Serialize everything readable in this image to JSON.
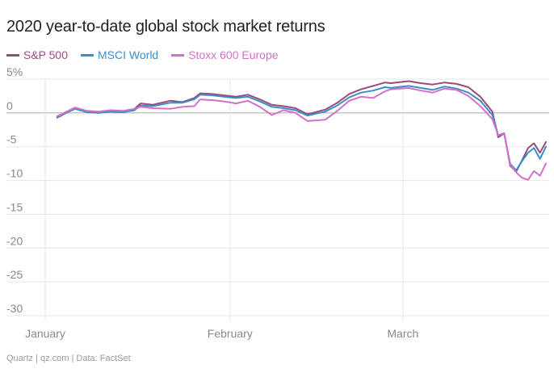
{
  "title": "2020 year-to-date global stock market returns",
  "source": "Quartz | qz.com | Data: FactSet",
  "colors": {
    "sp500": "#9b4a7c",
    "msci": "#3a8fc7",
    "stoxx": "#d56fc9",
    "grid": "#e6e6e6",
    "zero": "#aaaaaa"
  },
  "chart_data": {
    "type": "line",
    "ylim": [
      -30,
      5
    ],
    "yticks": [
      5,
      0,
      -5,
      -10,
      -15,
      -20,
      -25,
      -30
    ],
    "ytick_labels": [
      "5%",
      "0",
      "-5",
      "-10",
      "-15",
      "-20",
      "-25",
      "-30"
    ],
    "xlim": [
      "2020-01-01",
      "2020-03-25"
    ],
    "xticks": [
      {
        "date": "2020-01-01",
        "label": "January"
      },
      {
        "date": "2020-02-01",
        "label": "February"
      },
      {
        "date": "2020-03-01",
        "label": "March"
      }
    ],
    "grid": true,
    "legend": "top-left",
    "series": [
      {
        "name": "S&P 500",
        "color_key": "sp500",
        "points": [
          [
            "2020-01-03",
            -0.7
          ],
          [
            "2020-01-06",
            0.7
          ],
          [
            "2020-01-08",
            0.2
          ],
          [
            "2020-01-10",
            0.1
          ],
          [
            "2020-01-12",
            0.4
          ],
          [
            "2020-01-14",
            0.2
          ],
          [
            "2020-01-16",
            0.6
          ],
          [
            "2020-01-17",
            1.4
          ],
          [
            "2020-01-19",
            1.2
          ],
          [
            "2020-01-22",
            1.8
          ],
          [
            "2020-01-24",
            1.6
          ],
          [
            "2020-01-26",
            2.2
          ],
          [
            "2020-01-27",
            2.9
          ],
          [
            "2020-01-29",
            2.8
          ],
          [
            "2020-01-31",
            2.6
          ],
          [
            "2020-02-02",
            2.4
          ],
          [
            "2020-02-04",
            2.7
          ],
          [
            "2020-02-06",
            2.0
          ],
          [
            "2020-02-08",
            1.2
          ],
          [
            "2020-02-10",
            1.0
          ],
          [
            "2020-02-12",
            0.7
          ],
          [
            "2020-02-14",
            -0.2
          ],
          [
            "2020-02-17",
            0.5
          ],
          [
            "2020-02-19",
            1.5
          ],
          [
            "2020-02-21",
            2.8
          ],
          [
            "2020-02-23",
            3.5
          ],
          [
            "2020-02-25",
            4.0
          ],
          [
            "2020-02-27",
            4.5
          ],
          [
            "2020-02-28",
            4.4
          ],
          [
            "2020-03-02",
            4.7
          ],
          [
            "2020-03-04",
            4.4
          ],
          [
            "2020-03-06",
            4.2
          ],
          [
            "2020-03-08",
            4.5
          ],
          [
            "2020-03-10",
            4.3
          ],
          [
            "2020-03-12",
            3.8
          ],
          [
            "2020-03-14",
            2.4
          ],
          [
            "2020-03-16",
            0.2
          ],
          [
            "2020-03-17",
            -3.6
          ],
          [
            "2020-03-18",
            -3.0
          ],
          [
            "2020-03-19",
            -7.8
          ],
          [
            "2020-03-20",
            -8.7
          ],
          [
            "2020-03-21",
            -7.0
          ],
          [
            "2020-03-22",
            -5.2
          ],
          [
            "2020-03-23",
            -4.5
          ],
          [
            "2020-03-24",
            -5.9
          ],
          [
            "2020-03-25",
            -4.3
          ]
        ]
      },
      {
        "name": "MSCI World",
        "color_key": "msci",
        "points": [
          [
            "2020-01-03",
            -0.6
          ],
          [
            "2020-01-06",
            0.6
          ],
          [
            "2020-01-08",
            0.1
          ],
          [
            "2020-01-10",
            0.0
          ],
          [
            "2020-01-12",
            0.2
          ],
          [
            "2020-01-14",
            0.1
          ],
          [
            "2020-01-16",
            0.4
          ],
          [
            "2020-01-17",
            1.1
          ],
          [
            "2020-01-19",
            1.0
          ],
          [
            "2020-01-22",
            1.5
          ],
          [
            "2020-01-24",
            1.5
          ],
          [
            "2020-01-26",
            2.0
          ],
          [
            "2020-01-27",
            2.7
          ],
          [
            "2020-01-29",
            2.6
          ],
          [
            "2020-01-31",
            2.4
          ],
          [
            "2020-02-02",
            2.2
          ],
          [
            "2020-02-04",
            2.4
          ],
          [
            "2020-02-06",
            1.7
          ],
          [
            "2020-02-08",
            0.9
          ],
          [
            "2020-02-10",
            0.7
          ],
          [
            "2020-02-12",
            0.4
          ],
          [
            "2020-02-14",
            -0.4
          ],
          [
            "2020-02-17",
            0.2
          ],
          [
            "2020-02-19",
            1.1
          ],
          [
            "2020-02-21",
            2.3
          ],
          [
            "2020-02-23",
            3.0
          ],
          [
            "2020-02-25",
            3.3
          ],
          [
            "2020-02-27",
            3.8
          ],
          [
            "2020-02-28",
            3.7
          ],
          [
            "2020-03-02",
            4.0
          ],
          [
            "2020-03-04",
            3.7
          ],
          [
            "2020-03-06",
            3.4
          ],
          [
            "2020-03-08",
            3.9
          ],
          [
            "2020-03-10",
            3.6
          ],
          [
            "2020-03-12",
            3.0
          ],
          [
            "2020-03-14",
            1.8
          ],
          [
            "2020-03-16",
            -0.3
          ],
          [
            "2020-03-17",
            -3.3
          ],
          [
            "2020-03-18",
            -3.0
          ],
          [
            "2020-03-19",
            -7.5
          ],
          [
            "2020-03-20",
            -8.5
          ],
          [
            "2020-03-21",
            -7.1
          ],
          [
            "2020-03-22",
            -5.9
          ],
          [
            "2020-03-23",
            -5.2
          ],
          [
            "2020-03-24",
            -6.8
          ],
          [
            "2020-03-25",
            -5.0
          ]
        ]
      },
      {
        "name": "Stoxx 600 Europe",
        "color_key": "stoxx",
        "points": [
          [
            "2020-01-03",
            -0.5
          ],
          [
            "2020-01-06",
            0.8
          ],
          [
            "2020-01-08",
            0.3
          ],
          [
            "2020-01-10",
            0.2
          ],
          [
            "2020-01-12",
            0.4
          ],
          [
            "2020-01-14",
            0.3
          ],
          [
            "2020-01-16",
            0.6
          ],
          [
            "2020-01-17",
            0.9
          ],
          [
            "2020-01-19",
            0.7
          ],
          [
            "2020-01-22",
            0.6
          ],
          [
            "2020-01-24",
            0.9
          ],
          [
            "2020-01-26",
            1.0
          ],
          [
            "2020-01-27",
            2.0
          ],
          [
            "2020-01-29",
            1.9
          ],
          [
            "2020-01-31",
            1.7
          ],
          [
            "2020-02-02",
            1.4
          ],
          [
            "2020-02-04",
            1.8
          ],
          [
            "2020-02-06",
            0.9
          ],
          [
            "2020-02-08",
            -0.3
          ],
          [
            "2020-02-10",
            0.4
          ],
          [
            "2020-02-12",
            0.0
          ],
          [
            "2020-02-14",
            -1.2
          ],
          [
            "2020-02-17",
            -1.0
          ],
          [
            "2020-02-19",
            0.3
          ],
          [
            "2020-02-21",
            1.8
          ],
          [
            "2020-02-23",
            2.4
          ],
          [
            "2020-02-25",
            2.2
          ],
          [
            "2020-02-27",
            3.2
          ],
          [
            "2020-02-28",
            3.5
          ],
          [
            "2020-03-02",
            3.7
          ],
          [
            "2020-03-04",
            3.3
          ],
          [
            "2020-03-06",
            3.0
          ],
          [
            "2020-03-08",
            3.6
          ],
          [
            "2020-03-10",
            3.4
          ],
          [
            "2020-03-12",
            2.5
          ],
          [
            "2020-03-14",
            1.0
          ],
          [
            "2020-03-16",
            -0.9
          ],
          [
            "2020-03-17",
            -3.3
          ],
          [
            "2020-03-18",
            -3.0
          ],
          [
            "2020-03-19",
            -7.6
          ],
          [
            "2020-03-20",
            -8.8
          ],
          [
            "2020-03-21",
            -9.6
          ],
          [
            "2020-03-22",
            -9.9
          ],
          [
            "2020-03-23",
            -8.6
          ],
          [
            "2020-03-24",
            -9.3
          ],
          [
            "2020-03-25",
            -7.5
          ]
        ]
      }
    ]
  }
}
